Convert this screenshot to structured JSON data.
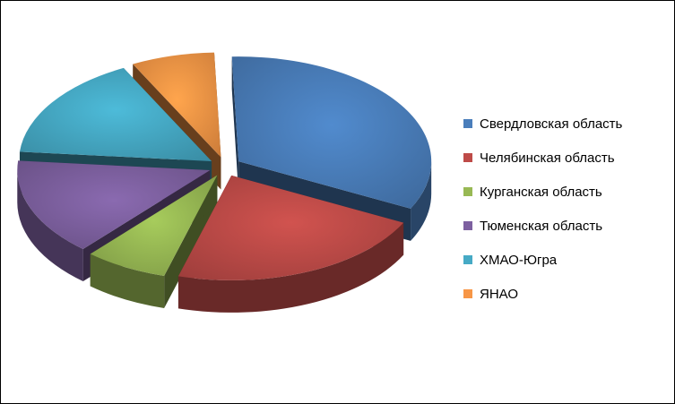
{
  "chart_data": {
    "type": "pie",
    "title": "",
    "categories": [
      "Свердловская область",
      "Челябинская область",
      "Курганская область",
      "Тюменская область",
      "ХМАО-Югра",
      "ЯНАО"
    ],
    "values": [
      33,
      22,
      7,
      15,
      16,
      7
    ],
    "colors": [
      "#4a7ebb",
      "#be4b48",
      "#98b954",
      "#7d60a0",
      "#46aac5",
      "#f79646"
    ],
    "exploded": true,
    "three_d": true,
    "legend_position": "right"
  }
}
